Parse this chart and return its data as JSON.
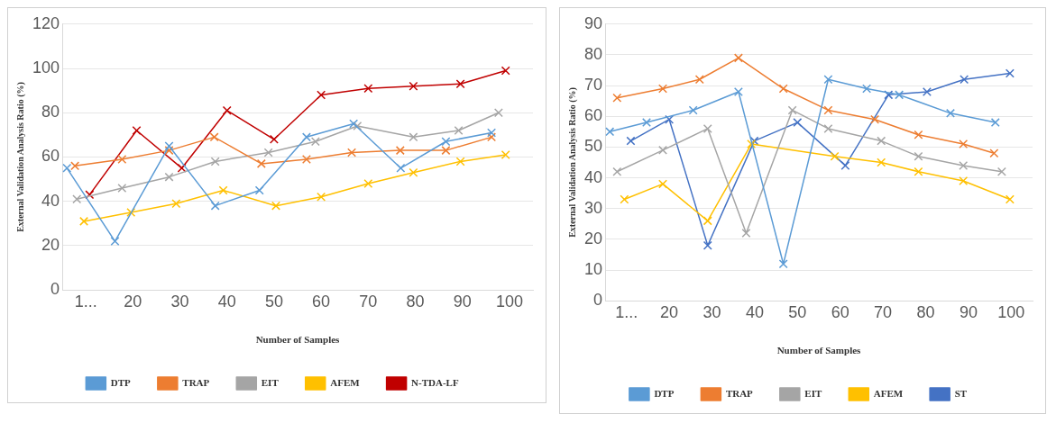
{
  "chart_data": [
    {
      "type": "line",
      "xlabel": "Number of Samples",
      "ylabel": "External Validation Analysis Ratio (%)",
      "xlim": [
        5,
        105
      ],
      "xticks": [
        {
          "value": 10,
          "label": "1..."
        },
        20,
        30,
        40,
        50,
        60,
        70,
        80,
        90,
        100
      ],
      "ylim": [
        0,
        120
      ],
      "yticks": [
        0,
        20,
        40,
        60,
        80,
        100,
        120
      ],
      "grid": "y",
      "legend": "bottom",
      "marker": "cross",
      "series": [
        {
          "name": "DTP",
          "color": "#5b9bd5",
          "x": [
            6,
            16.2,
            27.7,
            37.5,
            46.9,
            56.9,
            66.9,
            76.9,
            86.5,
            96.2
          ],
          "values": [
            55,
            22,
            65,
            38,
            45,
            69,
            75,
            55,
            67,
            71
          ]
        },
        {
          "name": "TRAP",
          "color": "#ed7d31",
          "x": [
            7.7,
            17.7,
            27.7,
            37.3,
            47.3,
            56.9,
            66.5,
            76.8,
            86.5,
            96.2
          ],
          "values": [
            56,
            59,
            63,
            69,
            57,
            59,
            62,
            63,
            63,
            69
          ]
        },
        {
          "name": "EIT",
          "color": "#a5a5a5",
          "x": [
            8.1,
            17.7,
            27.7,
            37.5,
            48.8,
            58.8,
            67.7,
            79.6,
            89.2,
            97.7
          ],
          "values": [
            41,
            46,
            51,
            58,
            62,
            67,
            74,
            69,
            72,
            80
          ]
        },
        {
          "name": "AFEM",
          "color": "#ffc000",
          "x": [
            9.6,
            19.6,
            29.2,
            39.2,
            50.4,
            60,
            70,
            79.6,
            89.6,
            99.2
          ],
          "values": [
            31,
            35,
            39,
            45,
            38,
            42,
            48,
            53,
            58,
            61
          ]
        },
        {
          "name": "N-TDA-LF",
          "color": "#c00000",
          "x": [
            10.8,
            20.8,
            30.4,
            40,
            50,
            60,
            70,
            79.6,
            89.6,
            99.2
          ],
          "values": [
            43,
            72,
            55,
            81,
            68,
            88,
            91,
            92,
            93,
            99
          ]
        }
      ]
    },
    {
      "type": "line",
      "xlabel": "Number of Samples",
      "ylabel": "External Validation Analysis Ratio (%)",
      "xlim": [
        5,
        105
      ],
      "xticks": [
        {
          "value": 10,
          "label": "1..."
        },
        20,
        30,
        40,
        50,
        60,
        70,
        80,
        90,
        100
      ],
      "ylim": [
        0,
        90
      ],
      "yticks": [
        0,
        10,
        20,
        30,
        40,
        50,
        60,
        70,
        80,
        90
      ],
      "grid": "y",
      "legend": "bottom",
      "marker": "cross",
      "series": [
        {
          "name": "DTP",
          "color": "#5b9bd5",
          "x": [
            6.1,
            14.7,
            25.6,
            36.2,
            46.7,
            57.2,
            66.2,
            73.8,
            85.8,
            96.3
          ],
          "values": [
            55,
            58,
            62,
            68,
            12,
            72,
            69,
            67,
            61,
            58
          ]
        },
        {
          "name": "TRAP",
          "color": "#ed7d31",
          "x": [
            7.8,
            18.5,
            27.1,
            36.2,
            46.7,
            57.2,
            68.1,
            78.3,
            88.8,
            96
          ],
          "values": [
            66,
            69,
            72,
            79,
            69,
            62,
            59,
            54,
            51,
            48
          ]
        },
        {
          "name": "EIT",
          "color": "#a5a5a5",
          "x": [
            7.8,
            18.5,
            29,
            38,
            48.8,
            57.2,
            69.6,
            78.3,
            88.8,
            97.8
          ],
          "values": [
            42,
            49,
            56,
            22,
            62,
            56,
            52,
            47,
            44,
            42
          ]
        },
        {
          "name": "AFEM",
          "color": "#ffc000",
          "x": [
            9.5,
            18.5,
            29,
            39.2,
            58.7,
            69.6,
            78.3,
            88.8,
            99.7
          ],
          "values": [
            33,
            38,
            26,
            51,
            47,
            45,
            42,
            39,
            33
          ]
        },
        {
          "name": "ST",
          "color": "#4472c4",
          "x": [
            11,
            20,
            29,
            39.9,
            50,
            61.2,
            71.3,
            80.3,
            89,
            99.7
          ],
          "values": [
            52,
            59,
            18,
            52,
            58,
            44,
            67,
            68,
            72,
            74
          ]
        }
      ]
    }
  ]
}
